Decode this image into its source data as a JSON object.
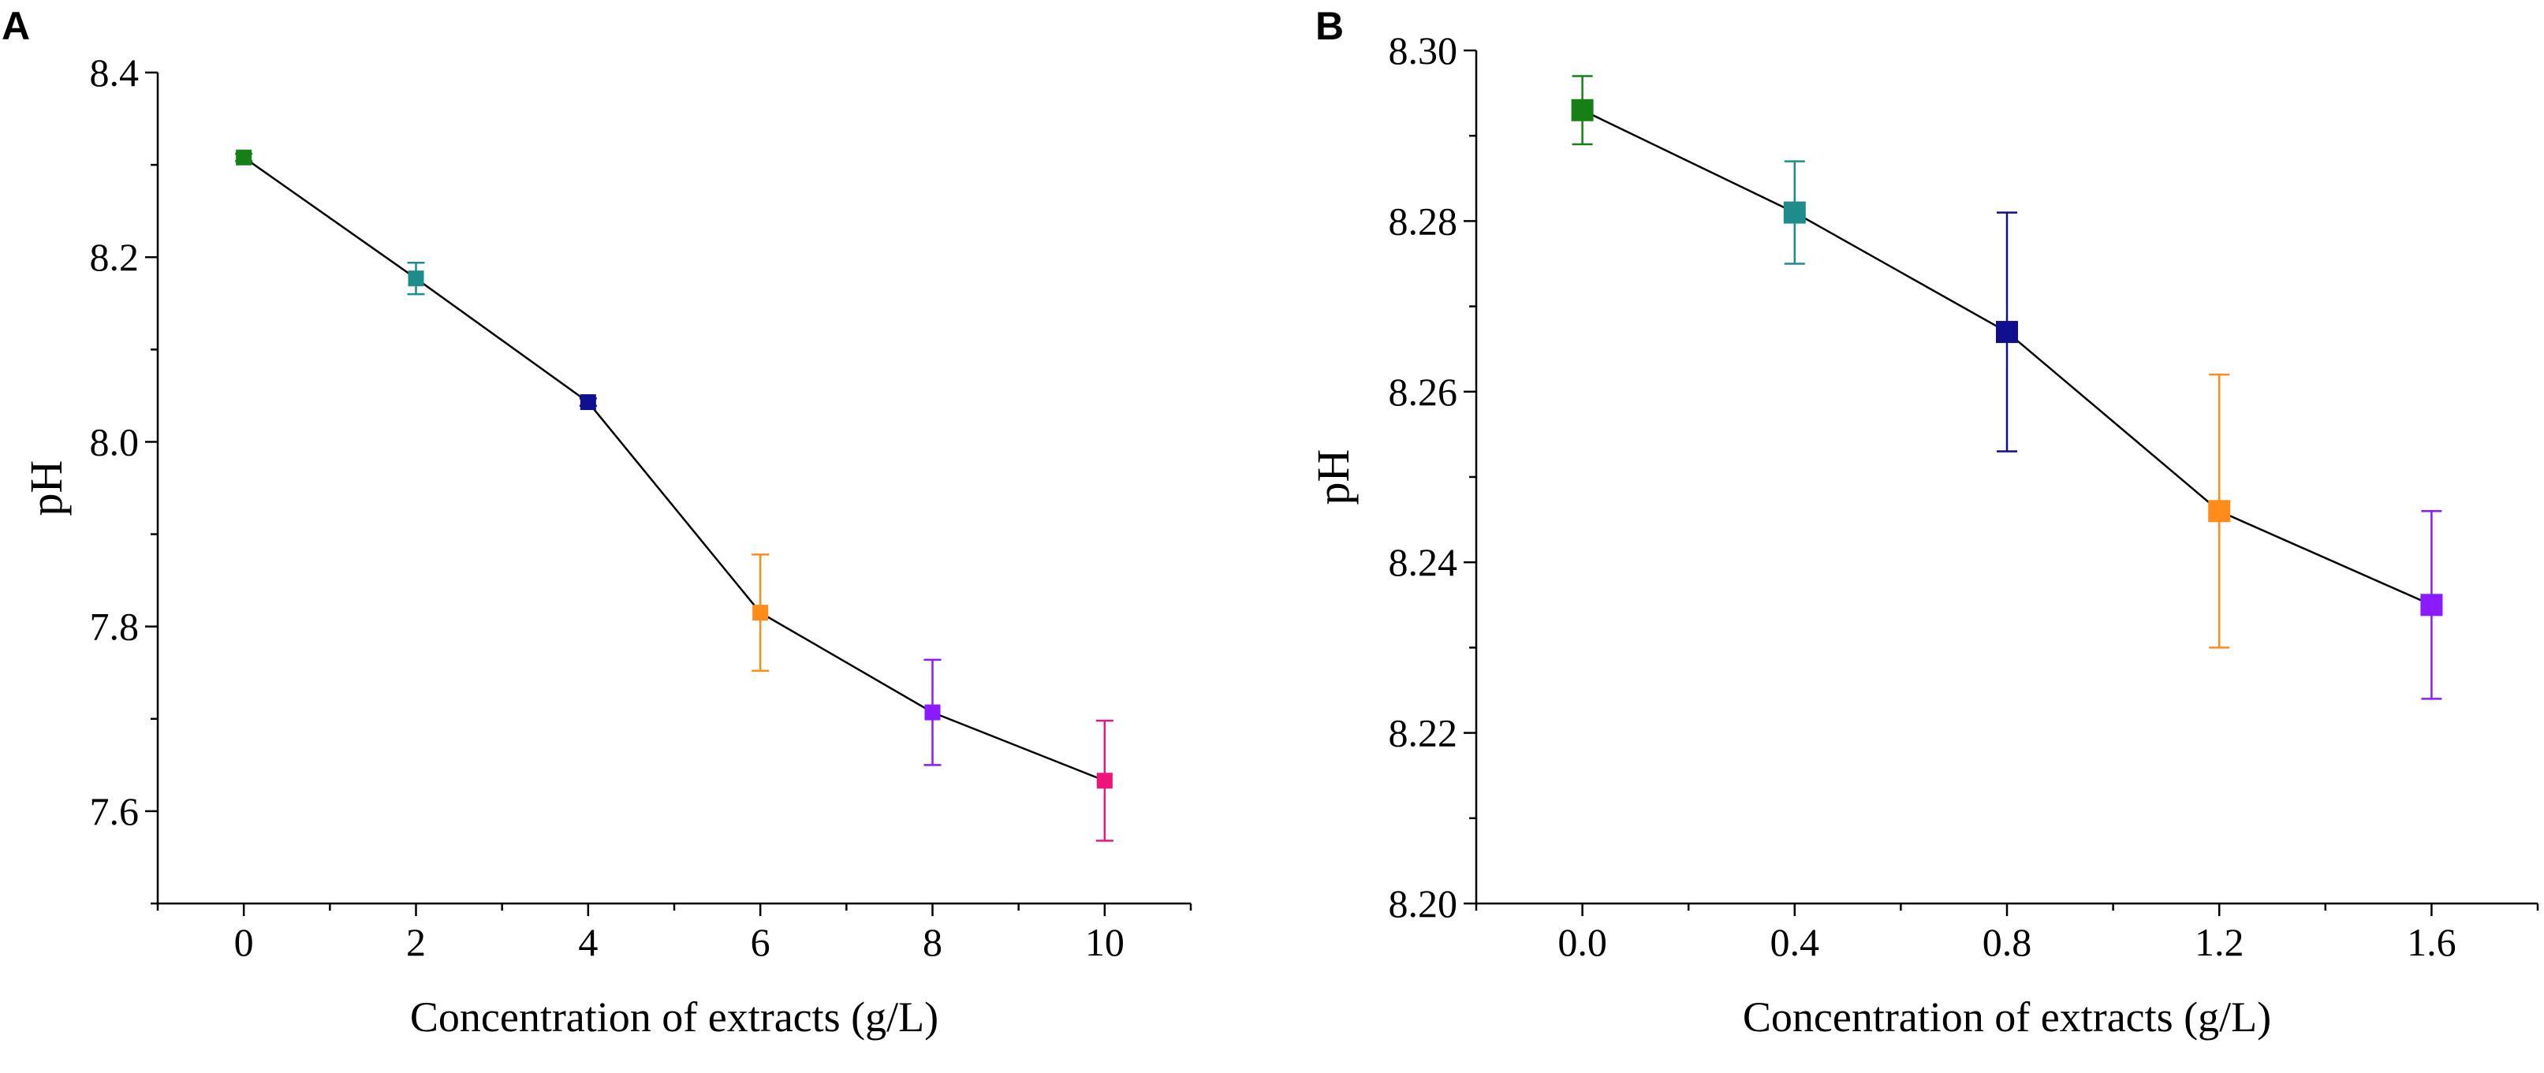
{
  "panels": [
    {
      "label": "A",
      "chart_data": {
        "type": "scatter",
        "title": "",
        "xlabel": "Concentration of extracts (g/L)",
        "ylabel": "pH",
        "xlim": [
          -1,
          11
        ],
        "ylim": [
          7.5,
          8.4
        ],
        "xticks": [
          0,
          2,
          4,
          6,
          8,
          10
        ],
        "xtick_labels": [
          "0",
          "2",
          "4",
          "6",
          "8",
          "10"
        ],
        "xminor": [
          -1,
          1,
          3,
          5,
          7,
          9,
          11
        ],
        "yticks": [
          7.6,
          7.8,
          8.0,
          8.2,
          8.4
        ],
        "ytick_labels": [
          "7.6",
          "7.8",
          "8.0",
          "8.2",
          "8.4"
        ],
        "yminor": [
          7.5,
          7.7,
          7.9,
          8.1,
          8.3
        ],
        "grid": false,
        "connect_line": true,
        "points": [
          {
            "x": 0,
            "y": 8.308,
            "err": 0.004,
            "color": "#168016"
          },
          {
            "x": 2,
            "y": 8.177,
            "err": 0.017,
            "color": "#1f8c8c"
          },
          {
            "x": 4,
            "y": 8.043,
            "err": 0.004,
            "color": "#0f0f8f"
          },
          {
            "x": 6,
            "y": 7.815,
            "err": 0.063,
            "color": "#ff8c1a"
          },
          {
            "x": 8,
            "y": 7.707,
            "err": 0.057,
            "color": "#8c1aff"
          },
          {
            "x": 10,
            "y": 7.633,
            "err": 0.065,
            "color": "#f0147a"
          }
        ]
      }
    },
    {
      "label": "B",
      "chart_data": {
        "type": "scatter",
        "title": "",
        "xlabel": "Concentration of extracts (g/L)",
        "ylabel": "pH",
        "xlim": [
          -0.2,
          1.8
        ],
        "ylim": [
          8.2,
          8.3
        ],
        "xticks": [
          0.0,
          0.4,
          0.8,
          1.2,
          1.6
        ],
        "xtick_labels": [
          "0.0",
          "0.4",
          "0.8",
          "1.2",
          "1.6"
        ],
        "xminor": [
          -0.2,
          0.2,
          0.6,
          1.0,
          1.4,
          1.8
        ],
        "yticks": [
          8.2,
          8.22,
          8.24,
          8.26,
          8.28,
          8.3
        ],
        "ytick_labels": [
          "8.20",
          "8.22",
          "8.24",
          "8.26",
          "8.28",
          "8.30"
        ],
        "yminor": [
          8.21,
          8.23,
          8.25,
          8.27,
          8.29
        ],
        "grid": false,
        "connect_line": true,
        "points": [
          {
            "x": 0.0,
            "y": 8.293,
            "err": 0.004,
            "color": "#168016"
          },
          {
            "x": 0.4,
            "y": 8.281,
            "err": 0.006,
            "color": "#1f8c8c"
          },
          {
            "x": 0.8,
            "y": 8.267,
            "err": 0.014,
            "color": "#0f0f8f"
          },
          {
            "x": 1.2,
            "y": 8.246,
            "err": 0.016,
            "color": "#ff8c1a"
          },
          {
            "x": 1.6,
            "y": 8.235,
            "err": 0.011,
            "color": "#8c1aff"
          }
        ]
      }
    }
  ]
}
